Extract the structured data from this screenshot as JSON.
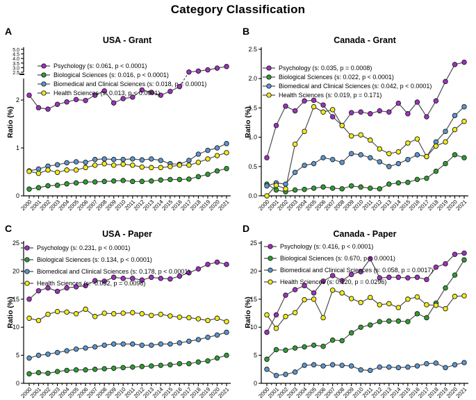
{
  "title": "Category Classification",
  "ylabel": "Ratio (%)",
  "colors": {
    "psychology": "#A12FC2",
    "biological": "#2E9E30",
    "biomedical": "#5B96D2",
    "health": "#F2EC19",
    "line": "#4d4d4d",
    "marker_edge": "#1a1a1a",
    "axis": "#000000"
  },
  "chart_data": [
    {
      "type": "line",
      "letter": "A",
      "title": "USA - Grant",
      "ylabel": "Ratio (%)",
      "ylim": [
        0,
        5
      ],
      "y_break": {
        "lower_max": 2.45,
        "upper_min": 2.5
      },
      "yticks_lower": [
        0,
        1,
        2
      ],
      "ytick_labels_lower": [
        "0",
        "1",
        "2"
      ],
      "yticks_upper": [
        2.5,
        3.0,
        3.5,
        4.0,
        4.5,
        5.0
      ],
      "ytick_labels_upper": [
        "2.5",
        "3.0",
        "3.5",
        "4.0",
        "4.5",
        "5.0"
      ],
      "x": [
        "2000",
        "2001",
        "2002",
        "2003",
        "2004",
        "2005",
        "2006",
        "2007",
        "2008",
        "2009",
        "2010",
        "2011",
        "2012",
        "2013",
        "2014",
        "2015",
        "2016",
        "2017",
        "2018",
        "2019",
        "2020",
        "2021"
      ],
      "series": [
        {
          "name": "Psychology",
          "label": "Psychology (s: 0.061, p < 0.0001)",
          "color": "#A12FC2",
          "values": [
            2.1,
            1.84,
            1.81,
            1.91,
            1.96,
            2.01,
            1.99,
            2.1,
            2.19,
            1.94,
            2.03,
            2.06,
            2.21,
            2.16,
            2.1,
            2.18,
            2.28,
            2.52,
            2.62,
            2.76,
            2.95,
            3.12
          ]
        },
        {
          "name": "Biological Sciences",
          "label": "Biological Sciences (s: 0.016, p < 0.0001)",
          "color": "#2E9E30",
          "values": [
            0.14,
            0.17,
            0.21,
            0.22,
            0.25,
            0.27,
            0.29,
            0.29,
            0.3,
            0.31,
            0.32,
            0.3,
            0.3,
            0.31,
            0.33,
            0.34,
            0.34,
            0.35,
            0.4,
            0.45,
            0.52,
            0.57
          ]
        },
        {
          "name": "Biomedical and Clinical Sciences",
          "label": "Biomedical and Clinical Sciences (s: 0.018, p < 0.0001)",
          "color": "#5B96D2",
          "values": [
            0.52,
            0.56,
            0.62,
            0.65,
            0.69,
            0.71,
            0.7,
            0.76,
            0.77,
            0.76,
            0.76,
            0.77,
            0.75,
            0.77,
            0.74,
            0.67,
            0.66,
            0.74,
            0.87,
            0.95,
            1.0,
            1.09
          ]
        },
        {
          "name": "Health Sciences",
          "label": "Health Sciences (s: 0.013, p < 0.0001)",
          "color": "#F2EC19",
          "values": [
            0.51,
            0.47,
            0.54,
            0.49,
            0.54,
            0.54,
            0.59,
            0.64,
            0.67,
            0.64,
            0.66,
            0.64,
            0.6,
            0.59,
            0.59,
            0.61,
            0.64,
            0.64,
            0.7,
            0.77,
            0.84,
            0.9
          ]
        }
      ]
    },
    {
      "type": "line",
      "letter": "B",
      "title": "Canada - Grant",
      "ylabel": "Ratio (%)",
      "ylim": [
        0,
        2.5
      ],
      "yticks": [
        0,
        0.5,
        1.0,
        1.5,
        2.0,
        2.5
      ],
      "ytick_labels": [
        "0.0",
        "0.5",
        "1.0",
        "1.5",
        "2.0",
        "2.5"
      ],
      "x": [
        "2000",
        "2001",
        "2002",
        "2003",
        "2004",
        "2005",
        "2006",
        "2007",
        "2008",
        "2009",
        "2010",
        "2011",
        "2012",
        "2013",
        "2014",
        "2015",
        "2016",
        "2017",
        "2018",
        "2019",
        "2020",
        "2021"
      ],
      "series": [
        {
          "name": "Psychology",
          "label": "Psychology (s: 0.035, p = 0.0008)",
          "color": "#A12FC2",
          "values": [
            0.65,
            1.2,
            1.53,
            1.45,
            1.62,
            1.63,
            1.55,
            1.35,
            1.2,
            1.42,
            1.43,
            1.4,
            1.45,
            1.43,
            1.58,
            1.4,
            1.6,
            1.35,
            1.62,
            1.95,
            2.24,
            2.28
          ]
        },
        {
          "name": "Biological Sciences",
          "label": "Biological Sciences (s: 0.022, p < 0.0001)",
          "color": "#2E9E30",
          "values": [
            0.2,
            0.1,
            0.07,
            0.1,
            0.11,
            0.13,
            0.15,
            0.13,
            0.12,
            0.17,
            0.15,
            0.13,
            0.12,
            0.2,
            0.22,
            0.23,
            0.28,
            0.3,
            0.42,
            0.55,
            0.7,
            0.65
          ]
        },
        {
          "name": "Biomedical and Clinical Sciences",
          "label": "Biomedical and Clinical Sciences (s: 0.042, p < 0.0001)",
          "color": "#5B96D2",
          "values": [
            0.17,
            0.22,
            0.2,
            0.4,
            0.52,
            0.55,
            0.65,
            0.62,
            0.57,
            0.72,
            0.7,
            0.65,
            0.58,
            0.5,
            0.55,
            0.62,
            0.7,
            0.67,
            0.92,
            1.1,
            1.37,
            1.52
          ]
        },
        {
          "name": "Health Sciences",
          "label": "Health Sciences (s: 0.019, p = 0.171)",
          "color": "#F2EC19",
          "values": [
            0.0,
            0.18,
            0.12,
            0.88,
            1.1,
            1.52,
            1.43,
            1.47,
            1.2,
            1.02,
            1.04,
            0.95,
            0.8,
            0.72,
            0.75,
            0.9,
            0.97,
            0.67,
            0.85,
            0.92,
            1.13,
            1.27
          ]
        }
      ]
    },
    {
      "type": "line",
      "letter": "C",
      "title": "USA - Paper",
      "ylabel": "Ratio (%)",
      "ylim": [
        0,
        25
      ],
      "yticks": [
        0,
        5,
        10,
        15,
        20,
        25
      ],
      "ytick_labels": [
        "0",
        "5",
        "10",
        "15",
        "20",
        "25"
      ],
      "x": [
        "2000",
        "2001",
        "2002",
        "2003",
        "2004",
        "2005",
        "2006",
        "2007",
        "2008",
        "2009",
        "2010",
        "2011",
        "2012",
        "2013",
        "2014",
        "2015",
        "2016",
        "2017",
        "2018",
        "2019",
        "2020",
        "2021"
      ],
      "series": [
        {
          "name": "Psychology",
          "label": "Psychology (s: 0.231, p < 0.0001)",
          "color": "#A12FC2",
          "values": [
            15.0,
            16.5,
            17.0,
            16.4,
            17.0,
            17.2,
            17.4,
            18.3,
            18.2,
            18.9,
            18.7,
            18.7,
            18.4,
            18.9,
            18.7,
            18.6,
            19.1,
            19.7,
            20.4,
            21.2,
            21.6,
            21.2
          ]
        },
        {
          "name": "Biological Sciences",
          "label": "Biological Sciences (s: 0.134, p < 0.0001)",
          "color": "#2E9E30",
          "values": [
            1.7,
            1.9,
            1.8,
            2.1,
            2.3,
            2.4,
            2.4,
            2.5,
            2.6,
            2.7,
            2.8,
            2.9,
            3.0,
            3.1,
            3.2,
            3.3,
            3.5,
            3.5,
            3.8,
            4.0,
            4.5,
            5.0
          ]
        },
        {
          "name": "Biomedical and Clinical Sciences",
          "label": "Biomedical and Clinical Sciences (s: 0.178, p < 0.0001)",
          "color": "#5B96D2",
          "values": [
            4.5,
            5.0,
            5.2,
            5.5,
            5.8,
            6.1,
            6.3,
            6.5,
            6.8,
            7.0,
            7.0,
            7.0,
            6.8,
            6.8,
            7.0,
            7.0,
            7.2,
            7.5,
            7.8,
            8.2,
            8.6,
            9.1
          ]
        },
        {
          "name": "Health Sciences",
          "label": "Health Sciences (s: -0.052, p = 0.0096)",
          "color": "#F2EC19",
          "values": [
            11.6,
            11.2,
            12.3,
            12.8,
            12.7,
            12.4,
            13.2,
            11.9,
            12.5,
            12.4,
            12.5,
            12.6,
            12.4,
            12.1,
            12.3,
            12.0,
            11.8,
            11.7,
            11.5,
            11.2,
            11.6,
            11.0
          ]
        }
      ]
    },
    {
      "type": "line",
      "letter": "D",
      "title": "Canada - Paper",
      "ylabel": "Ratio (%)",
      "ylim": [
        0,
        25
      ],
      "yticks": [
        0,
        5,
        10,
        15,
        20,
        25
      ],
      "ytick_labels": [
        "0",
        "5",
        "10",
        "15",
        "20",
        "25"
      ],
      "x": [
        "2000",
        "2001",
        "2002",
        "2003",
        "2004",
        "2005",
        "2006",
        "2007",
        "2008",
        "2009",
        "2010",
        "2011",
        "2012",
        "2013",
        "2014",
        "2015",
        "2016",
        "2017",
        "2018",
        "2019",
        "2020",
        "2021"
      ],
      "series": [
        {
          "name": "Psychology",
          "label": "Psychology (s: 0.416, p < 0.0001)",
          "color": "#A12FC2",
          "values": [
            9.1,
            12.2,
            15.7,
            16.7,
            17.4,
            16.1,
            18.2,
            19.2,
            18.3,
            19.4,
            19.9,
            22.2,
            18.8,
            18.9,
            18.9,
            18.8,
            18.9,
            18.5,
            20.7,
            21.3,
            23.0,
            23.2
          ]
        },
        {
          "name": "Biological Sciences",
          "label": "Biological Sciences (s: 0.670, p < 0.0001)",
          "color": "#2E9E30",
          "values": [
            4.3,
            6.0,
            5.9,
            6.3,
            6.5,
            6.8,
            6.6,
            7.7,
            7.6,
            9.0,
            10.0,
            10.4,
            11.0,
            11.1,
            11.1,
            11.0,
            12.4,
            11.7,
            14.3,
            17.0,
            19.3,
            22.0
          ]
        },
        {
          "name": "Biomedical and Clinical Sciences",
          "label": "Biomedical and Clinical Sciences (s: 0.058, p = 0.0017)",
          "color": "#5B96D2",
          "values": [
            2.5,
            1.4,
            1.6,
            2.0,
            3.2,
            3.3,
            3.1,
            3.3,
            3.2,
            3.1,
            2.4,
            2.3,
            2.9,
            2.9,
            2.8,
            2.9,
            3.1,
            3.5,
            3.6,
            2.8,
            3.3,
            3.7
          ]
        },
        {
          "name": "Health Sciences",
          "label": "Health Sciences (s: 0.120, p = 0.0296)",
          "color": "#F2EC19",
          "values": [
            12.2,
            9.8,
            11.9,
            12.6,
            14.9,
            15.0,
            11.7,
            16.6,
            16.1,
            15.1,
            14.4,
            15.3,
            14.0,
            14.2,
            13.5,
            15.0,
            15.4,
            14.0,
            13.9,
            13.3,
            15.5,
            15.6
          ]
        }
      ]
    }
  ]
}
